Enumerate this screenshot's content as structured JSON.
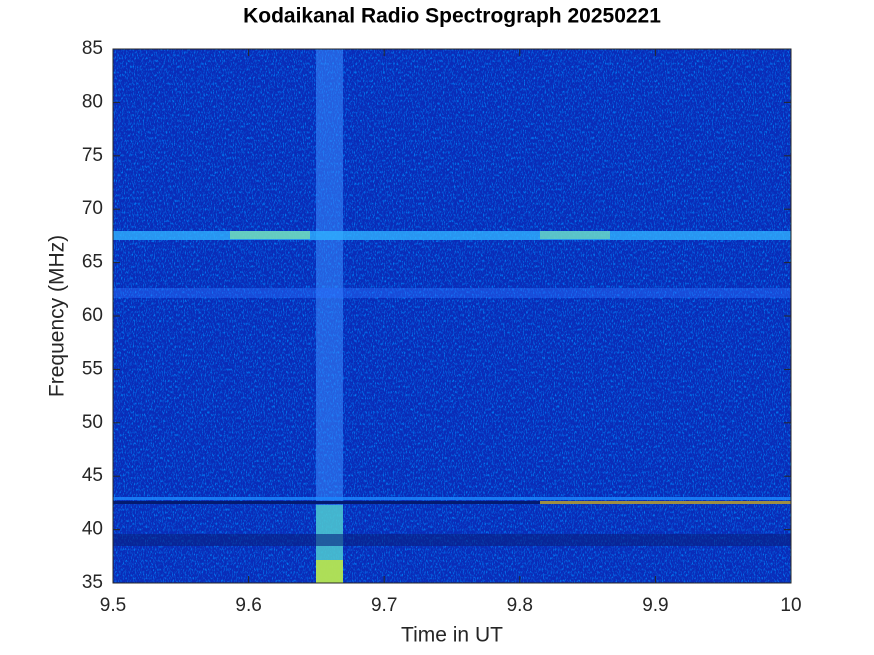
{
  "chart_data": {
    "type": "heatmap",
    "title": "Kodaikanal Radio Spectrograph  20250221",
    "x_label": "Time in UT",
    "y_label": "Frequency (MHz)",
    "xlim": [
      9.5,
      10
    ],
    "xticks": [
      9.5,
      9.6,
      9.7,
      9.8,
      9.9,
      10
    ],
    "ylim": [
      35,
      85
    ],
    "yticks": [
      35,
      40,
      45,
      50,
      55,
      60,
      65,
      70,
      75,
      80,
      85
    ]
  }
}
